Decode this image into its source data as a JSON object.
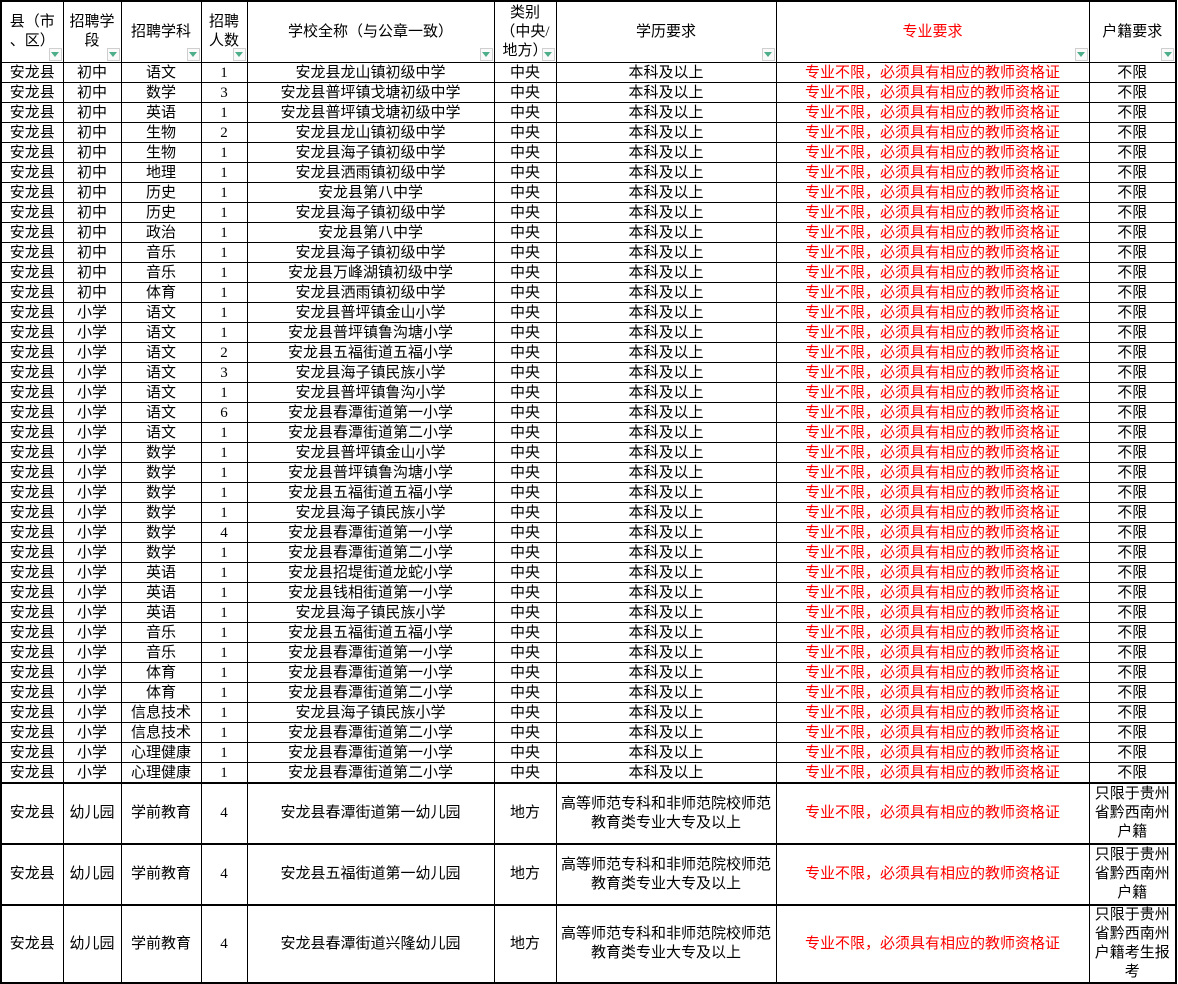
{
  "colors": {
    "major_requirement_text": "#fe0000",
    "filter_arrow": "#4dae89",
    "grid_line": "#000000"
  },
  "table": {
    "columns": [
      {
        "key": "county",
        "label": "县（市\n、区）"
      },
      {
        "key": "stage",
        "label": "招聘学\n段"
      },
      {
        "key": "subject",
        "label": "招聘学科"
      },
      {
        "key": "count",
        "label": "招聘\n人数"
      },
      {
        "key": "school",
        "label": "学校全称（与公章一致）"
      },
      {
        "key": "category",
        "label": "类别\n（中央/\n地方）"
      },
      {
        "key": "education",
        "label": "学历要求"
      },
      {
        "key": "major",
        "label": "专业要求",
        "highlight": true
      },
      {
        "key": "residence",
        "label": "户籍要求"
      }
    ],
    "rows": [
      {
        "county": "安龙县",
        "stage": "初中",
        "subject": "语文",
        "count": "1",
        "school": "安龙县龙山镇初级中学",
        "category": "中央",
        "education": "本科及以上",
        "major": "专业不限，必须具有相应的教师资格证",
        "residence": "不限"
      },
      {
        "county": "安龙县",
        "stage": "初中",
        "subject": "数学",
        "count": "3",
        "school": "安龙县普坪镇戈塘初级中学",
        "category": "中央",
        "education": "本科及以上",
        "major": "专业不限，必须具有相应的教师资格证",
        "residence": "不限"
      },
      {
        "county": "安龙县",
        "stage": "初中",
        "subject": "英语",
        "count": "1",
        "school": "安龙县普坪镇戈塘初级中学",
        "category": "中央",
        "education": "本科及以上",
        "major": "专业不限，必须具有相应的教师资格证",
        "residence": "不限"
      },
      {
        "county": "安龙县",
        "stage": "初中",
        "subject": "生物",
        "count": "2",
        "school": "安龙县龙山镇初级中学",
        "category": "中央",
        "education": "本科及以上",
        "major": "专业不限，必须具有相应的教师资格证",
        "residence": "不限"
      },
      {
        "county": "安龙县",
        "stage": "初中",
        "subject": "生物",
        "count": "1",
        "school": "安龙县海子镇初级中学",
        "category": "中央",
        "education": "本科及以上",
        "major": "专业不限，必须具有相应的教师资格证",
        "residence": "不限"
      },
      {
        "county": "安龙县",
        "stage": "初中",
        "subject": "地理",
        "count": "1",
        "school": "安龙县洒雨镇初级中学",
        "category": "中央",
        "education": "本科及以上",
        "major": "专业不限，必须具有相应的教师资格证",
        "residence": "不限"
      },
      {
        "county": "安龙县",
        "stage": "初中",
        "subject": "历史",
        "count": "1",
        "school": "安龙县第八中学",
        "category": "中央",
        "education": "本科及以上",
        "major": "专业不限，必须具有相应的教师资格证",
        "residence": "不限"
      },
      {
        "county": "安龙县",
        "stage": "初中",
        "subject": "历史",
        "count": "1",
        "school": "安龙县海子镇初级中学",
        "category": "中央",
        "education": "本科及以上",
        "major": "专业不限，必须具有相应的教师资格证",
        "residence": "不限"
      },
      {
        "county": "安龙县",
        "stage": "初中",
        "subject": "政治",
        "count": "1",
        "school": "安龙县第八中学",
        "category": "中央",
        "education": "本科及以上",
        "major": "专业不限，必须具有相应的教师资格证",
        "residence": "不限"
      },
      {
        "county": "安龙县",
        "stage": "初中",
        "subject": "音乐",
        "count": "1",
        "school": "安龙县海子镇初级中学",
        "category": "中央",
        "education": "本科及以上",
        "major": "专业不限，必须具有相应的教师资格证",
        "residence": "不限"
      },
      {
        "county": "安龙县",
        "stage": "初中",
        "subject": "音乐",
        "count": "1",
        "school": "安龙县万峰湖镇初级中学",
        "category": "中央",
        "education": "本科及以上",
        "major": "专业不限，必须具有相应的教师资格证",
        "residence": "不限"
      },
      {
        "county": "安龙县",
        "stage": "初中",
        "subject": "体育",
        "count": "1",
        "school": "安龙县洒雨镇初级中学",
        "category": "中央",
        "education": "本科及以上",
        "major": "专业不限，必须具有相应的教师资格证",
        "residence": "不限"
      },
      {
        "county": "安龙县",
        "stage": "小学",
        "subject": "语文",
        "count": "1",
        "school": "安龙县普坪镇金山小学",
        "category": "中央",
        "education": "本科及以上",
        "major": "专业不限，必须具有相应的教师资格证",
        "residence": "不限"
      },
      {
        "county": "安龙县",
        "stage": "小学",
        "subject": "语文",
        "count": "1",
        "school": "安龙县普坪镇鲁沟塘小学",
        "category": "中央",
        "education": "本科及以上",
        "major": "专业不限，必须具有相应的教师资格证",
        "residence": "不限"
      },
      {
        "county": "安龙县",
        "stage": "小学",
        "subject": "语文",
        "count": "2",
        "school": "安龙县五福街道五福小学",
        "category": "中央",
        "education": "本科及以上",
        "major": "专业不限，必须具有相应的教师资格证",
        "residence": "不限"
      },
      {
        "county": "安龙县",
        "stage": "小学",
        "subject": "语文",
        "count": "3",
        "school": "安龙县海子镇民族小学",
        "category": "中央",
        "education": "本科及以上",
        "major": "专业不限，必须具有相应的教师资格证",
        "residence": "不限"
      },
      {
        "county": "安龙县",
        "stage": "小学",
        "subject": "语文",
        "count": "1",
        "school": "安龙县普坪镇鲁沟小学",
        "category": "中央",
        "education": "本科及以上",
        "major": "专业不限，必须具有相应的教师资格证",
        "residence": "不限"
      },
      {
        "county": "安龙县",
        "stage": "小学",
        "subject": "语文",
        "count": "6",
        "school": "安龙县春潭街道第一小学",
        "category": "中央",
        "education": "本科及以上",
        "major": "专业不限，必须具有相应的教师资格证",
        "residence": "不限"
      },
      {
        "county": "安龙县",
        "stage": "小学",
        "subject": "语文",
        "count": "1",
        "school": "安龙县春潭街道第二小学",
        "category": "中央",
        "education": "本科及以上",
        "major": "专业不限，必须具有相应的教师资格证",
        "residence": "不限"
      },
      {
        "county": "安龙县",
        "stage": "小学",
        "subject": "数学",
        "count": "1",
        "school": "安龙县普坪镇金山小学",
        "category": "中央",
        "education": "本科及以上",
        "major": "专业不限，必须具有相应的教师资格证",
        "residence": "不限"
      },
      {
        "county": "安龙县",
        "stage": "小学",
        "subject": "数学",
        "count": "1",
        "school": "安龙县普坪镇鲁沟塘小学",
        "category": "中央",
        "education": "本科及以上",
        "major": "专业不限，必须具有相应的教师资格证",
        "residence": "不限"
      },
      {
        "county": "安龙县",
        "stage": "小学",
        "subject": "数学",
        "count": "1",
        "school": "安龙县五福街道五福小学",
        "category": "中央",
        "education": "本科及以上",
        "major": "专业不限，必须具有相应的教师资格证",
        "residence": "不限"
      },
      {
        "county": "安龙县",
        "stage": "小学",
        "subject": "数学",
        "count": "1",
        "school": "安龙县海子镇民族小学",
        "category": "中央",
        "education": "本科及以上",
        "major": "专业不限，必须具有相应的教师资格证",
        "residence": "不限"
      },
      {
        "county": "安龙县",
        "stage": "小学",
        "subject": "数学",
        "count": "4",
        "school": "安龙县春潭街道第一小学",
        "category": "中央",
        "education": "本科及以上",
        "major": "专业不限，必须具有相应的教师资格证",
        "residence": "不限"
      },
      {
        "county": "安龙县",
        "stage": "小学",
        "subject": "数学",
        "count": "1",
        "school": "安龙县春潭街道第二小学",
        "category": "中央",
        "education": "本科及以上",
        "major": "专业不限，必须具有相应的教师资格证",
        "residence": "不限"
      },
      {
        "county": "安龙县",
        "stage": "小学",
        "subject": "英语",
        "count": "1",
        "school": "安龙县招堤街道龙蛇小学",
        "category": "中央",
        "education": "本科及以上",
        "major": "专业不限，必须具有相应的教师资格证",
        "residence": "不限"
      },
      {
        "county": "安龙县",
        "stage": "小学",
        "subject": "英语",
        "count": "1",
        "school": "安龙县钱相街道第一小学",
        "category": "中央",
        "education": "本科及以上",
        "major": "专业不限，必须具有相应的教师资格证",
        "residence": "不限"
      },
      {
        "county": "安龙县",
        "stage": "小学",
        "subject": "英语",
        "count": "1",
        "school": "安龙县海子镇民族小学",
        "category": "中央",
        "education": "本科及以上",
        "major": "专业不限，必须具有相应的教师资格证",
        "residence": "不限"
      },
      {
        "county": "安龙县",
        "stage": "小学",
        "subject": "音乐",
        "count": "1",
        "school": "安龙县五福街道五福小学",
        "category": "中央",
        "education": "本科及以上",
        "major": "专业不限，必须具有相应的教师资格证",
        "residence": "不限"
      },
      {
        "county": "安龙县",
        "stage": "小学",
        "subject": "音乐",
        "count": "1",
        "school": "安龙县春潭街道第一小学",
        "category": "中央",
        "education": "本科及以上",
        "major": "专业不限，必须具有相应的教师资格证",
        "residence": "不限"
      },
      {
        "county": "安龙县",
        "stage": "小学",
        "subject": "体育",
        "count": "1",
        "school": "安龙县春潭街道第一小学",
        "category": "中央",
        "education": "本科及以上",
        "major": "专业不限，必须具有相应的教师资格证",
        "residence": "不限"
      },
      {
        "county": "安龙县",
        "stage": "小学",
        "subject": "体育",
        "count": "1",
        "school": "安龙县春潭街道第二小学",
        "category": "中央",
        "education": "本科及以上",
        "major": "专业不限，必须具有相应的教师资格证",
        "residence": "不限"
      },
      {
        "county": "安龙县",
        "stage": "小学",
        "subject": "信息技术",
        "count": "1",
        "school": "安龙县海子镇民族小学",
        "category": "中央",
        "education": "本科及以上",
        "major": "专业不限，必须具有相应的教师资格证",
        "residence": "不限"
      },
      {
        "county": "安龙县",
        "stage": "小学",
        "subject": "信息技术",
        "count": "1",
        "school": "安龙县春潭街道第二小学",
        "category": "中央",
        "education": "本科及以上",
        "major": "专业不限，必须具有相应的教师资格证",
        "residence": "不限"
      },
      {
        "county": "安龙县",
        "stage": "小学",
        "subject": "心理健康",
        "count": "1",
        "school": "安龙县春潭街道第一小学",
        "category": "中央",
        "education": "本科及以上",
        "major": "专业不限，必须具有相应的教师资格证",
        "residence": "不限"
      },
      {
        "county": "安龙县",
        "stage": "小学",
        "subject": "心理健康",
        "count": "1",
        "school": "安龙县春潭街道第二小学",
        "category": "中央",
        "education": "本科及以上",
        "major": "专业不限，必须具有相应的教师资格证",
        "residence": "不限"
      },
      {
        "county": "安龙县",
        "stage": "幼儿园",
        "subject": "学前教育",
        "count": "4",
        "school": "安龙县春潭街道第一幼儿园",
        "category": "地方",
        "education": "高等师范专科和非师范院校师范教育类专业大专及以上",
        "major": "专业不限，必须具有相应的教师资格证",
        "residence": "只限于贵州省黔西南州户籍"
      },
      {
        "county": "安龙县",
        "stage": "幼儿园",
        "subject": "学前教育",
        "count": "4",
        "school": "安龙县五福街道第一幼儿园",
        "category": "地方",
        "education": "高等师范专科和非师范院校师范教育类专业大专及以上",
        "major": "专业不限，必须具有相应的教师资格证",
        "residence": "只限于贵州省黔西南州户籍"
      },
      {
        "county": "安龙县",
        "stage": "幼儿园",
        "subject": "学前教育",
        "count": "4",
        "school": "安龙县春潭街道兴隆幼儿园",
        "category": "地方",
        "education": "高等师范专科和非师范院校师范教育类专业大专及以上",
        "major": "专业不限，必须具有相应的教师资格证",
        "residence": "只限于贵州省黔西南州户籍考生报考"
      }
    ]
  }
}
